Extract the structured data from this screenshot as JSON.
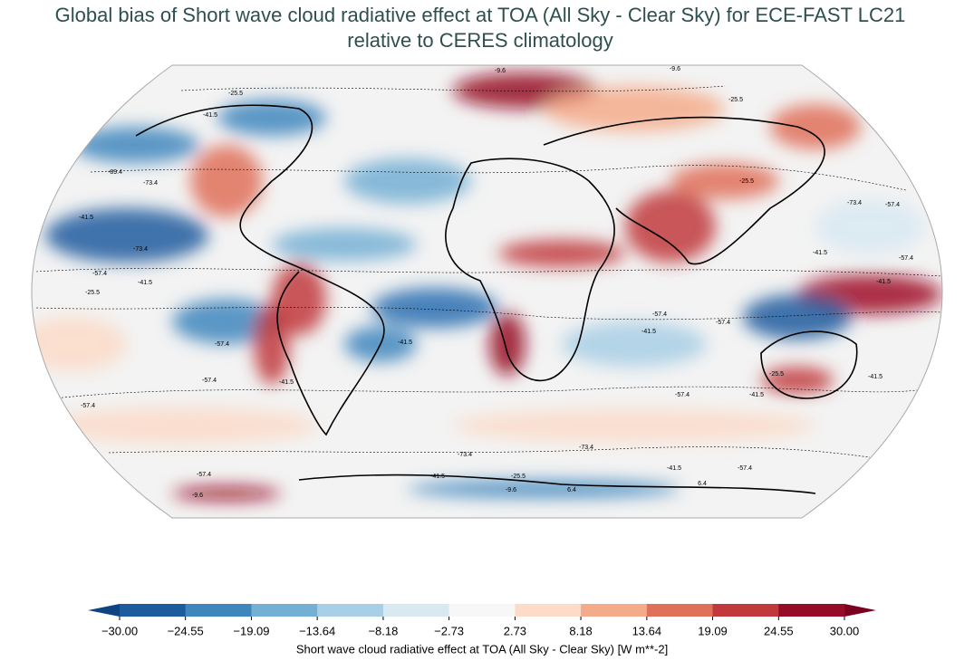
{
  "title_lines": [
    "Global bias of Short wave cloud radiative effect at TOA (All Sky - Clear Sky) for ECE-FAST LC21",
    "relative to CERES climatology"
  ],
  "contour_labels": [
    "-9.6",
    "-9.6",
    "-25.5",
    "-41.5",
    "-89.4",
    "-73.4",
    "-41.5",
    "-73.4",
    "-57.4",
    "-41.5",
    "-25.5",
    "-57.4",
    "-57.4",
    "-57.4",
    "-41.5",
    "-41.5",
    "-57.4",
    "-41.5",
    "-57.4",
    "-57.4",
    "-73.4",
    "-73.4",
    "-57.4",
    "-41.5",
    "-25.5",
    "-9.6",
    "6.4",
    "-57.4",
    "-41.5",
    "-73.4",
    "-57.4",
    "-41.5",
    "-57.4",
    "-41.5",
    "-41.5",
    "-25.5",
    "-41.5",
    "-25.5",
    "-25.5",
    "-9.6",
    "6.4"
  ],
  "colorbar": {
    "label": "Short wave cloud radiative effect at TOA (All Sky - Clear Sky) [W m**-2]",
    "ticks": [
      {
        "value": -30,
        "label": "−30.00"
      },
      {
        "value": -24.55,
        "label": "−24.55"
      },
      {
        "value": -19.09,
        "label": "−19.09"
      },
      {
        "value": -13.64,
        "label": "−13.64"
      },
      {
        "value": -8.18,
        "label": "−8.18"
      },
      {
        "value": -2.73,
        "label": "−2.73"
      },
      {
        "value": 2.73,
        "label": "2.73"
      },
      {
        "value": 8.18,
        "label": "8.18"
      },
      {
        "value": 13.64,
        "label": "13.64"
      },
      {
        "value": 19.09,
        "label": "19.09"
      },
      {
        "value": 24.55,
        "label": "24.55"
      },
      {
        "value": 30,
        "label": "30.00"
      }
    ],
    "colors": [
      "#1c5c9e",
      "#3f86bd",
      "#74afd4",
      "#a8cfe5",
      "#d8e9f2",
      "#f7f7f7",
      "#fcdbc8",
      "#f4ab89",
      "#df7059",
      "#c1393c",
      "#960c27"
    ],
    "under_color": "#0f4482",
    "over_color": "#7a0020"
  }
}
